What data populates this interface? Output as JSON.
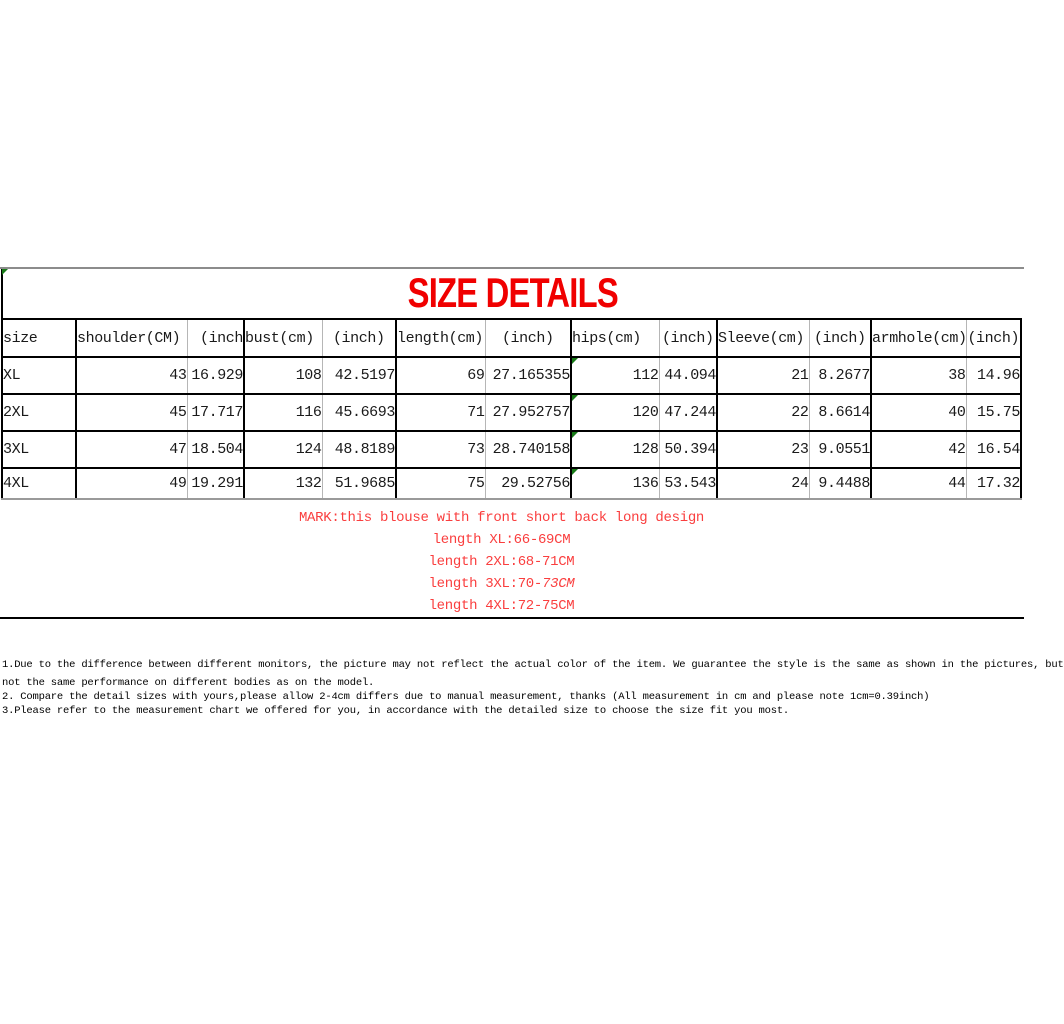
{
  "title": {
    "text": "SIZE DETAILS"
  },
  "theme": {
    "title_red": "#f00000",
    "mark_red": "#fa3e3e",
    "border_black": "#000000",
    "grid_gray": "#b6b6b6",
    "outer_gray": "#8c8c8c",
    "excel_marker_green": "#177a17"
  },
  "table": {
    "columns": [
      {
        "key": "size",
        "label": "size"
      },
      {
        "key": "shoulder_cm",
        "label": "shoulder(CM)"
      },
      {
        "key": "shoulder_in",
        "label": "(inch"
      },
      {
        "key": "bust_cm",
        "label": "bust(cm)"
      },
      {
        "key": "bust_in",
        "label": "(inch)"
      },
      {
        "key": "length_cm",
        "label": "length(cm)"
      },
      {
        "key": "length_in",
        "label": "(inch)"
      },
      {
        "key": "hips_cm",
        "label": "hips(cm)"
      },
      {
        "key": "hips_in",
        "label": "(inch)"
      },
      {
        "key": "sleeve_cm",
        "label": "Sleeve(cm)"
      },
      {
        "key": "sleeve_in",
        "label": "(inch)"
      },
      {
        "key": "armhole_cm",
        "label": "armhole(cm)"
      },
      {
        "key": "armhole_in",
        "label": "(inch)"
      }
    ],
    "rows": [
      {
        "size": "XL",
        "shoulder_cm": "43",
        "shoulder_in": "16.929",
        "bust_cm": "108",
        "bust_in": "42.5197",
        "length_cm": "69",
        "length_in": "27.165355",
        "hips_cm": "112",
        "hips_in": "44.094",
        "sleeve_cm": "21",
        "sleeve_in": "8.2677",
        "armhole_cm": "38",
        "armhole_in": "14.96"
      },
      {
        "size": "2XL",
        "shoulder_cm": "45",
        "shoulder_in": "17.717",
        "bust_cm": "116",
        "bust_in": "45.6693",
        "length_cm": "71",
        "length_in": "27.952757",
        "hips_cm": "120",
        "hips_in": "47.244",
        "sleeve_cm": "22",
        "sleeve_in": "8.6614",
        "armhole_cm": "40",
        "armhole_in": "15.75"
      },
      {
        "size": "3XL",
        "shoulder_cm": "47",
        "shoulder_in": "18.504",
        "bust_cm": "124",
        "bust_in": "48.8189",
        "length_cm": "73",
        "length_in": "28.740158",
        "hips_cm": "128",
        "hips_in": "50.394",
        "sleeve_cm": "23",
        "sleeve_in": "9.0551",
        "armhole_cm": "42",
        "armhole_in": "16.54"
      },
      {
        "size": "4XL",
        "shoulder_cm": "49",
        "shoulder_in": "19.291",
        "bust_cm": "132",
        "bust_in": "51.9685",
        "length_cm": "75",
        "length_in": "29.52756",
        "hips_cm": "136",
        "hips_in": "53.543",
        "sleeve_cm": "24",
        "sleeve_in": "9.4488",
        "armhole_cm": "44",
        "armhole_in": "17.32"
      }
    ],
    "marker_cells": "hips_cm"
  },
  "mark": {
    "heading": "MARK:this blouse with front short back long design",
    "length_xl": "length XL:66-69CM",
    "length_2xl": "length 2XL:68-71CM",
    "length_3xl_prefix": "length 3XL:70-",
    "length_3xl_italic": "73CM",
    "length_4xl": "length 4XL:72-75CM"
  },
  "notes": {
    "line1": "1.Due to the difference between different monitors, the picture may not reflect the actual color of the item. We guarantee the style is the same as shown in the pictures, but",
    "line2": "not the same performance on different bodies as on the model.",
    "line3": "2. Compare the detail sizes with yours,please allow 2-4cm differs due to manual measurement, thanks (All measurement in cm and please note 1cm=0.39inch)",
    "line4": "3.Please refer to the measurement chart we offered for you, in accordance with the detailed size to choose the size fit you most."
  }
}
